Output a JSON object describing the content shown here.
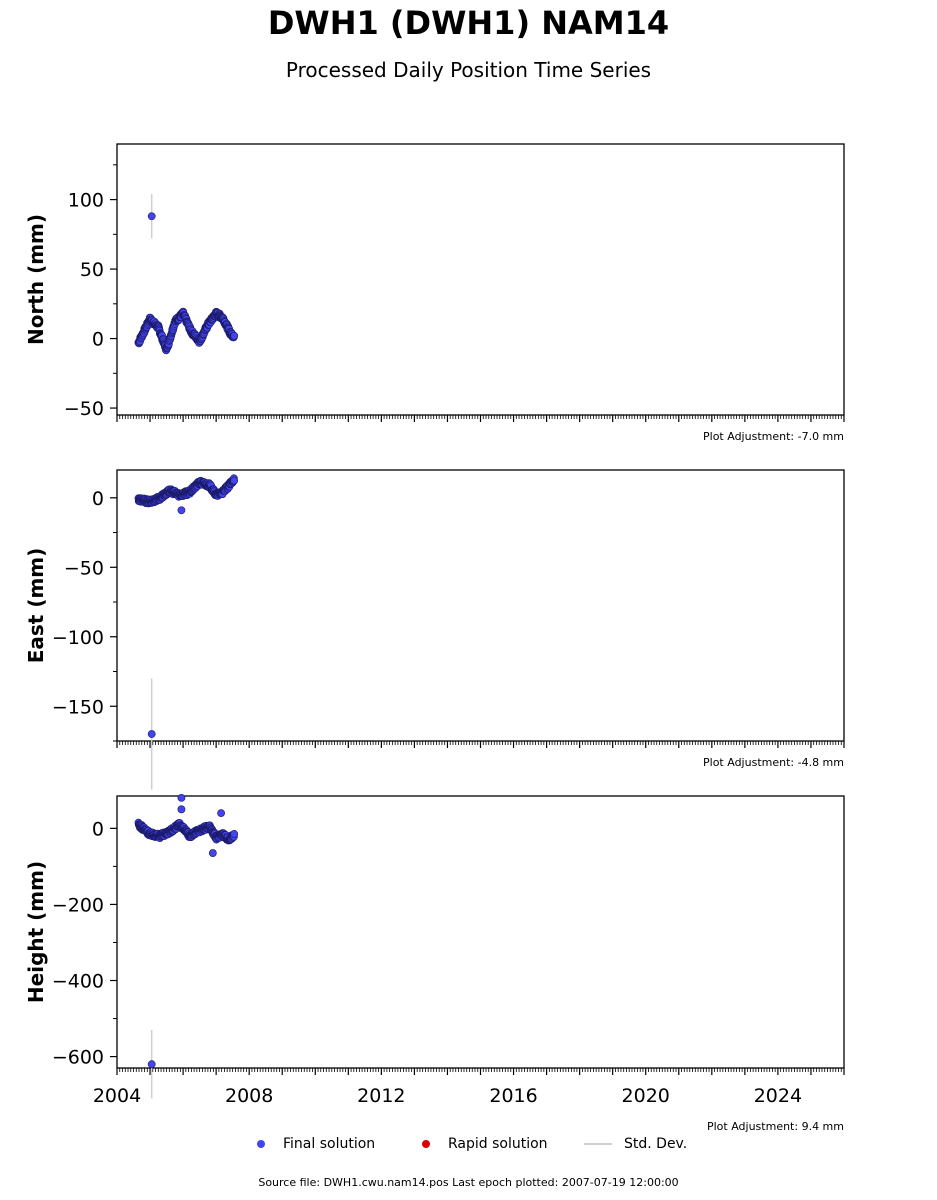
{
  "title": "DWH1 (DWH1) NAM14",
  "subtitle": "Processed Daily Position Time Series",
  "legend": {
    "final": "Final solution",
    "rapid": "Rapid solution",
    "std": "Std. Dev."
  },
  "footer": "Source file: DWH1.cwu.nam14.pos  Last epoch plotted: 2007-07-19 12:00:00",
  "colors": {
    "final": "#4444ee",
    "rapid": "#dd0000",
    "std": "#cfcfcf",
    "edge": "#1a1a66"
  },
  "chart_data": [
    {
      "type": "scatter",
      "panel": "north",
      "ylabel": "North (mm)",
      "ylim": [
        -55,
        140
      ],
      "yticks": [
        -50,
        0,
        50,
        100
      ],
      "xlim": [
        2004.0,
        2026.0
      ],
      "xticks": [
        2004,
        2008,
        2012,
        2016,
        2020,
        2024
      ],
      "adjustment": "Plot Adjustment: -7.0 mm",
      "outliers": [
        {
          "x": 2005.05,
          "y": 88,
          "err": 16
        }
      ],
      "series": [
        {
          "t": [
            2004.65,
            2005.0,
            2005.25,
            2005.5,
            2005.75,
            2006.0,
            2006.25,
            2006.5,
            2006.75,
            2007.0,
            2007.2,
            2007.45,
            2007.55
          ],
          "y": [
            -3,
            14,
            8,
            -8,
            12,
            18,
            5,
            -2,
            10,
            18,
            15,
            3,
            2
          ]
        }
      ]
    },
    {
      "type": "scatter",
      "panel": "east",
      "ylabel": "East (mm)",
      "ylim": [
        -175,
        20
      ],
      "yticks": [
        -150,
        -100,
        -50,
        0
      ],
      "xlim": [
        2004.0,
        2026.0
      ],
      "xticks": [
        2004,
        2008,
        2012,
        2016,
        2020,
        2024
      ],
      "adjustment": "Plot Adjustment: -4.8 mm",
      "outliers": [
        {
          "x": 2005.05,
          "y": -170,
          "err": 40
        },
        {
          "x": 2005.95,
          "y": -9,
          "err": 2
        }
      ],
      "series": [
        {
          "t": [
            2004.65,
            2005.0,
            2005.3,
            2005.6,
            2005.9,
            2006.2,
            2006.5,
            2006.8,
            2007.0,
            2007.2,
            2007.4,
            2007.55
          ],
          "y": [
            -1,
            -3,
            0,
            5,
            2,
            4,
            11,
            9,
            2,
            4,
            9,
            14
          ]
        }
      ]
    },
    {
      "type": "scatter",
      "panel": "height",
      "ylabel": "Height (mm)",
      "ylim": [
        -630,
        85
      ],
      "yticks": [
        -600,
        -400,
        -200,
        0
      ],
      "xlim": [
        2004.0,
        2026.0
      ],
      "xticks": [
        2004,
        2008,
        2012,
        2016,
        2020,
        2024
      ],
      "adjustment": "Plot Adjustment: 9.4 mm",
      "outliers": [
        {
          "x": 2005.05,
          "y": -620,
          "err": 90
        },
        {
          "x": 2005.95,
          "y": 80,
          "err": 4
        },
        {
          "x": 2005.95,
          "y": 50,
          "err": 4
        },
        {
          "x": 2006.9,
          "y": -65,
          "err": 4
        },
        {
          "x": 2007.15,
          "y": 40,
          "err": 4
        }
      ],
      "series": [
        {
          "t": [
            2004.65,
            2005.0,
            2005.3,
            2005.6,
            2005.9,
            2006.2,
            2006.5,
            2006.8,
            2007.0,
            2007.2,
            2007.4,
            2007.55
          ],
          "y": [
            10,
            -15,
            -20,
            -8,
            10,
            -20,
            -5,
            5,
            -25,
            -15,
            -30,
            -15
          ]
        }
      ]
    }
  ]
}
